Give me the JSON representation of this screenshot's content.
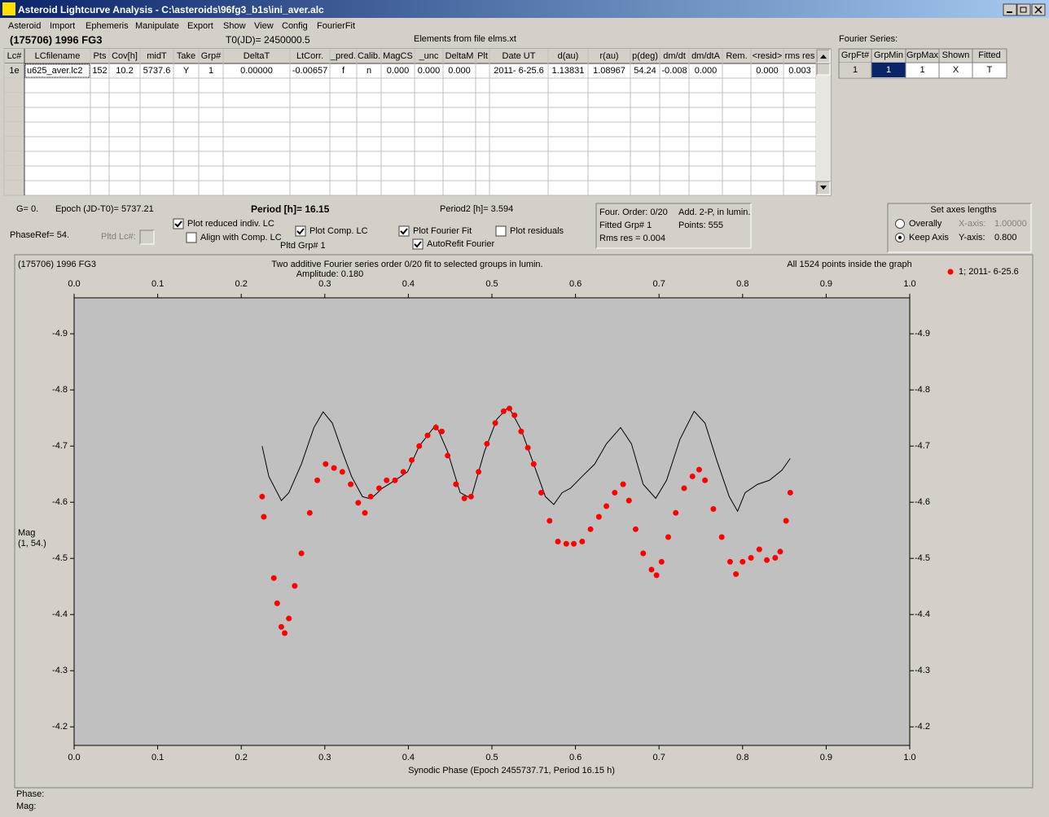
{
  "window": {
    "title": "Asteroid Lightcurve Analysis - C:\\asteroids\\96fg3_b1s\\ini_aver.alc"
  },
  "menu": [
    "Asteroid",
    "Import",
    "Ephemeris",
    "Manipulate",
    "Export",
    "Show",
    "View",
    "Config",
    "FourierFit"
  ],
  "header": {
    "object": "(175706) 1996 FG3",
    "t0": "T0(JD)= 2450000.5",
    "elements": "Elements from file elms.xt",
    "fourier_label": "Fourier Series:"
  },
  "table": {
    "columns": [
      "Lc#",
      "LCfilename",
      "Pts",
      "Cov[h]",
      "midT",
      "Take",
      "Grp#",
      "DeltaT",
      "LtCorr.",
      "_pred.",
      "Calib.",
      "MagCS",
      "_unc",
      "DeltaM",
      "Plt",
      "Date UT",
      "d(au)",
      "r(au)",
      "p(deg)",
      "dm/dt",
      "dm/dtA",
      "Rem.",
      "<resid>",
      "rms res"
    ],
    "rows": [
      [
        "1e",
        "u625_aver.lc2",
        "152",
        "10.2",
        "5737.6",
        "Y",
        "1",
        "0.00000",
        "-0.00657",
        "f",
        "n",
        "0.000",
        "0.000",
        "0.000",
        "",
        "2011- 6-25.6",
        "1.13831",
        "1.08967",
        "54.24",
        "-0.008",
        "0.000",
        "",
        "0.000",
        "0.003"
      ]
    ]
  },
  "fourier_table": {
    "columns": [
      "GrpFt#",
      "GrpMin",
      "GrpMax",
      "Shown",
      "Fitted"
    ],
    "rows": [
      [
        "1",
        "1",
        "1",
        "X",
        "T"
      ]
    ]
  },
  "info": {
    "g": "G= 0.",
    "epoch": "Epoch (JD-T0)= 5737.21",
    "period": "Period [h]= 16.15",
    "period2": "Period2 [h]= 3.594",
    "phase_ref": "PhaseRef= 54.",
    "pltd_lc": "Pltd Lc#:",
    "pltd_grp": "Pltd Grp#  1"
  },
  "options": [
    {
      "label": "Plot reduced indiv. LC",
      "checked": true
    },
    {
      "label": "Align with Comp. LC",
      "checked": false
    },
    {
      "label": "Plot Comp. LC",
      "checked": true
    },
    {
      "label": "Plot Fourier Fit",
      "checked": true
    },
    {
      "label": "AutoRefit Fourier",
      "checked": true
    },
    {
      "label": "Plot residuals",
      "checked": false
    }
  ],
  "fit_box": [
    "Four. Order:  0/20",
    "Add. 2-P, in lumin.",
    "Fitted Grp# 1",
    "Points: 555",
    "Rms res    = 0.004"
  ],
  "axes_box": {
    "title": "Set axes lengths",
    "options": [
      {
        "label": "Overally",
        "checked": false,
        "axis": "X-axis:",
        "value": "1.00000"
      },
      {
        "label": "Keep Axis",
        "checked": true,
        "axis": "Y-axis:",
        "value": "0.800"
      }
    ]
  },
  "chart_data": {
    "type": "scatter",
    "object": "(175706) 1996 FG3",
    "title": "Two additive Fourier series order 0/20 fit to selected groups in lumin.",
    "subtitle": "Amplitude: 0.180",
    "note": "All 1524 points inside the graph",
    "xlabel": "Synodic Phase (Epoch 2455737.71, Period 16.15 h)",
    "ylabel": [
      "Mag",
      "(1, 54.)"
    ],
    "xlim": [
      0,
      1
    ],
    "ylim": [
      -4.167,
      -4.964
    ],
    "xticks": [
      {
        "value": 0,
        "label": "0.0"
      },
      0.1,
      0.2,
      0.3,
      0.4,
      0.5,
      0.6,
      0.7,
      0.8,
      0.9,
      {
        "value": 1,
        "label": "1.0"
      }
    ],
    "yticks": [
      -4.9,
      -4.8,
      -4.7,
      -4.6,
      -4.5,
      -4.4,
      -4.3,
      -4.2
    ],
    "legend": "top-right",
    "series": [
      {
        "name": "1; 2011- 6-25.6",
        "color": "#ff0000",
        "x": [
          0.225,
          0.227,
          0.239,
          0.243,
          0.248,
          0.252,
          0.257,
          0.264,
          0.272,
          0.282,
          0.291,
          0.301,
          0.311,
          0.321,
          0.331,
          0.34,
          0.348,
          0.355,
          0.365,
          0.374,
          0.384,
          0.394,
          0.404,
          0.413,
          0.423,
          0.433,
          0.44,
          0.447,
          0.457,
          0.467,
          0.475,
          0.484,
          0.494,
          0.504,
          0.514,
          0.521,
          0.527,
          0.535,
          0.543,
          0.55,
          0.559,
          0.569,
          0.579,
          0.589,
          0.598,
          0.608,
          0.618,
          0.628,
          0.637,
          0.647,
          0.657,
          0.664,
          0.672,
          0.681,
          0.691,
          0.697,
          0.703,
          0.711,
          0.72,
          0.73,
          0.74,
          0.748,
          0.755,
          0.765,
          0.775,
          0.785,
          0.792,
          0.8,
          0.81,
          0.82,
          0.829,
          0.839,
          0.845,
          0.852,
          0.857
        ],
        "values": [
          -4.61,
          -4.574,
          -4.465,
          -4.42,
          -4.378,
          -4.367,
          -4.393,
          -4.451,
          -4.509,
          -4.581,
          -4.639,
          -4.668,
          -4.661,
          -4.654,
          -4.632,
          -4.599,
          -4.581,
          -4.61,
          -4.625,
          -4.639,
          -4.639,
          -4.654,
          -4.675,
          -4.7,
          -4.719,
          -4.733,
          -4.726,
          -4.683,
          -4.632,
          -4.607,
          -4.61,
          -4.654,
          -4.704,
          -4.741,
          -4.762,
          -4.767,
          -4.755,
          -4.726,
          -4.697,
          -4.668,
          -4.617,
          -4.567,
          -4.53,
          -4.526,
          -4.526,
          -4.53,
          -4.552,
          -4.574,
          -4.593,
          -4.617,
          -4.632,
          -4.603,
          -4.552,
          -4.509,
          -4.48,
          -4.47,
          -4.494,
          -4.538,
          -4.581,
          -4.625,
          -4.646,
          -4.658,
          -4.639,
          -4.588,
          -4.538,
          -4.494,
          -4.472,
          -4.494,
          -4.501,
          -4.516,
          -4.497,
          -4.501,
          -4.512,
          -4.567,
          -4.617
        ]
      }
    ],
    "fit_line": {
      "color": "#000000",
      "x": [
        0.225,
        0.233,
        0.248,
        0.257,
        0.272,
        0.287,
        0.298,
        0.309,
        0.321,
        0.332,
        0.345,
        0.355,
        0.369,
        0.384,
        0.399,
        0.413,
        0.433,
        0.447,
        0.462,
        0.475,
        0.491,
        0.506,
        0.52,
        0.535,
        0.55,
        0.564,
        0.574,
        0.584,
        0.594,
        0.608,
        0.623,
        0.637,
        0.654,
        0.667,
        0.681,
        0.696,
        0.709,
        0.725,
        0.742,
        0.755,
        0.769,
        0.784,
        0.794,
        0.803,
        0.818,
        0.832,
        0.847,
        0.857
      ],
      "values": [
        -4.7,
        -4.646,
        -4.603,
        -4.617,
        -4.668,
        -4.733,
        -4.761,
        -4.741,
        -4.69,
        -4.646,
        -4.61,
        -4.606,
        -4.625,
        -4.639,
        -4.654,
        -4.7,
        -4.738,
        -4.69,
        -4.617,
        -4.607,
        -4.69,
        -4.748,
        -4.77,
        -4.729,
        -4.668,
        -4.61,
        -4.596,
        -4.617,
        -4.625,
        -4.646,
        -4.668,
        -4.704,
        -4.733,
        -4.704,
        -4.632,
        -4.607,
        -4.639,
        -4.712,
        -4.762,
        -4.741,
        -4.675,
        -4.61,
        -4.584,
        -4.617,
        -4.632,
        -4.639,
        -4.657,
        -4.678
      ]
    }
  },
  "status": [
    "Phase:",
    "Mag:"
  ]
}
